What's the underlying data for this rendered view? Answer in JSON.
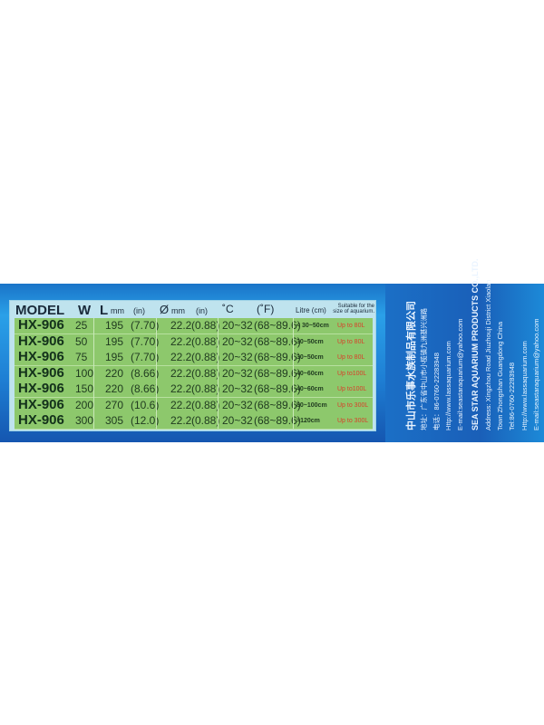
{
  "table": {
    "headers": {
      "model": "MODEL",
      "w": "W",
      "l": "L",
      "l_unit": "mm",
      "l_in": "(in)",
      "d": "Ø",
      "d_unit": "mm",
      "d_in": "(in)",
      "c": "˚C",
      "f": "(˚F)",
      "litre": "Litre (cm)",
      "suitable": "Suitable for the size of aquarium."
    },
    "rows": [
      {
        "model": "HX-906",
        "w": "25",
        "l": "195",
        "l_in": "(7.70)",
        "d": "22.2",
        "d_in": "(0.88)",
        "c": "20~32",
        "f": "(68~89.6)",
        "size": "< 30~50cm",
        "cap": "Up to 80L"
      },
      {
        "model": "HX-906",
        "w": "50",
        "l": "195",
        "l_in": "(7.70)",
        "d": "22.2",
        "d_in": "(0.88)",
        "c": "20~32",
        "f": "(68~89.6)",
        "size": "30~50cm",
        "cap": "Up to 80L"
      },
      {
        "model": "HX-906",
        "w": "75",
        "l": "195",
        "l_in": "(7.70)",
        "d": "22.2",
        "d_in": "(0.88)",
        "c": "20~32",
        "f": "(68~89.6)",
        "size": "30~50cm",
        "cap": "Up to 80L"
      },
      {
        "model": "HX-906",
        "w": "100",
        "l": "220",
        "l_in": "(8.66)",
        "d": "22.2",
        "d_in": "(0.88)",
        "c": "20~32",
        "f": "(68~89.6)",
        "size": "40~60cm",
        "cap": "Up to100L"
      },
      {
        "model": "HX-906",
        "w": "150",
        "l": "220",
        "l_in": "(8.66)",
        "d": "22.2",
        "d_in": "(0.88)",
        "c": "20~32",
        "f": "(68~89.6)",
        "size": "40~60cm",
        "cap": "Up to100L"
      },
      {
        "model": "HX-906",
        "w": "200",
        "l": "270",
        "l_in": "(10.6)",
        "d": "22.2",
        "d_in": "(0.88)",
        "c": "20~32",
        "f": "(68~89.6)",
        "size": "80~100cm",
        "cap": "Up to 300L"
      },
      {
        "model": "HX-906",
        "w": "300",
        "l": "305",
        "l_in": "(12.0)",
        "d": "22.2",
        "d_in": "(0.88)",
        "c": "20~32",
        "f": "(68~89.6)",
        "size": ">120cm",
        "cap": "Up to 300L"
      }
    ]
  },
  "company": {
    "lines": [
      "中山市乐事水族制品有限公司",
      "地址：广东省中山市小榄镇九洲基兴洲路",
      "电话：86-0760-22283948",
      "Http://www.lassaquarium.com",
      "E-mail:seastaraquarium@yahoo.com",
      "SEA STAR AQUARIUM PRODUCTS CO.,LTD.",
      "Address: Xingzhou Road Jiuzhouji District Xiaolan",
      "Town Zhongshan Guangdong China",
      "Tel:86-0760-22283948",
      "Http://www.lassaquarium.com",
      "E-mail:seastaraquarium@yahoo.com"
    ]
  }
}
